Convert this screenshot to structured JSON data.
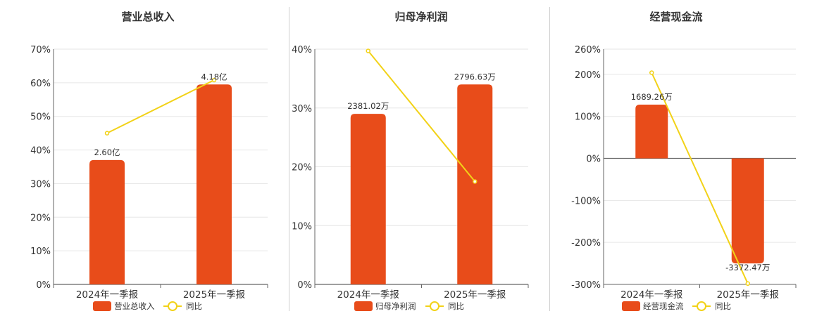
{
  "colors": {
    "bar": "#e84c1a",
    "line": "#f2d218",
    "grid": "#e6e6e6",
    "axis": "#666666"
  },
  "charts": [
    {
      "title": "营业总收入",
      "legend": {
        "bar_label": "营业总收入",
        "line_label": "同比"
      }
    },
    {
      "title": "归母净利润",
      "legend": {
        "bar_label": "归母净利润",
        "line_label": "同比"
      }
    },
    {
      "title": "经营现金流",
      "legend": {
        "bar_label": "经营现金流",
        "line_label": "同比"
      }
    }
  ],
  "chart_data": [
    {
      "type": "bar",
      "title": "营业总收入",
      "categories": [
        "2024年一季报",
        "2025年一季报"
      ],
      "series": [
        {
          "name": "营业总收入",
          "type": "bar",
          "values": [
            37,
            59.5
          ],
          "labels": [
            "2.60亿",
            "4.18亿"
          ]
        },
        {
          "name": "同比",
          "type": "line",
          "values": [
            45,
            60.8
          ]
        }
      ],
      "y_ticks": [
        "0%",
        "10%",
        "20%",
        "30%",
        "40%",
        "50%",
        "60%",
        "70%"
      ],
      "ylim": [
        0,
        70
      ],
      "grid": true,
      "legend_position": "bottom"
    },
    {
      "type": "bar",
      "title": "归母净利润",
      "categories": [
        "2024年一季报",
        "2025年一季报"
      ],
      "series": [
        {
          "name": "归母净利润",
          "type": "bar",
          "values": [
            29,
            34
          ],
          "labels": [
            "2381.02万",
            "2796.63万"
          ]
        },
        {
          "name": "同比",
          "type": "line",
          "values": [
            39.7,
            17.5
          ]
        }
      ],
      "y_ticks": [
        "0%",
        "10%",
        "20%",
        "30%",
        "40%"
      ],
      "ylim": [
        0,
        40
      ],
      "grid": true,
      "legend_position": "bottom"
    },
    {
      "type": "bar",
      "title": "经营现金流",
      "categories": [
        "2024年一季报",
        "2025年一季报"
      ],
      "series": [
        {
          "name": "经营现金流",
          "type": "bar",
          "values": [
            128,
            -250
          ],
          "labels": [
            "1689.26万",
            "-3372.47万"
          ]
        },
        {
          "name": "同比",
          "type": "line",
          "values": [
            204,
            -298
          ]
        }
      ],
      "y_ticks": [
        "-300%",
        "-200%",
        "-100%",
        "0%",
        "100%",
        "200%",
        "260%"
      ],
      "y_tick_values": [
        -300,
        -200,
        -100,
        0,
        100,
        200,
        260
      ],
      "ylim": [
        -300,
        260
      ],
      "grid": true,
      "legend_position": "bottom"
    }
  ]
}
